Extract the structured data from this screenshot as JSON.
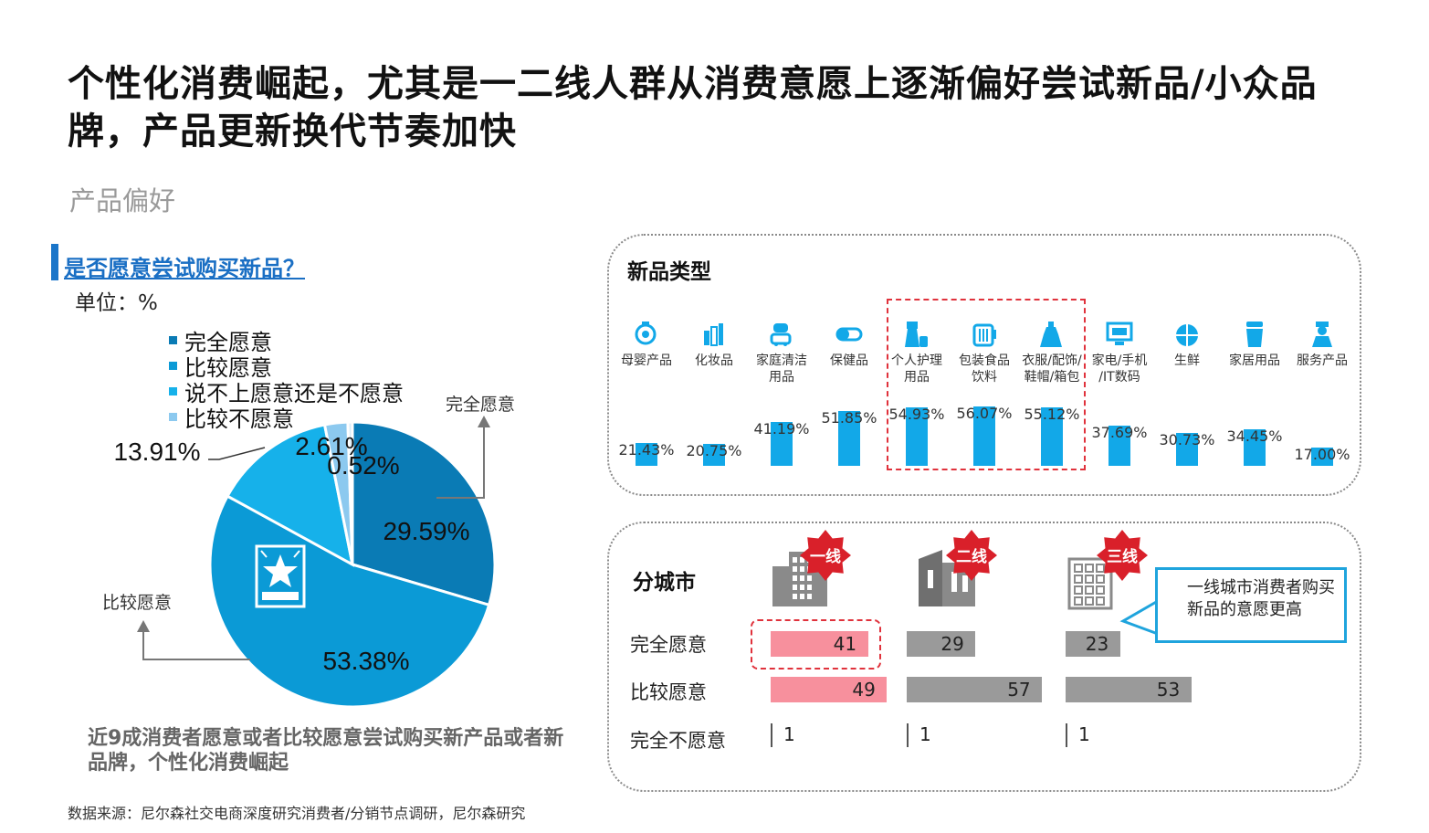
{
  "title": "个性化消费崛起，尤其是一二线人群从消费意愿上逐渐偏好尝试新品/小众品牌，产品更新换代节奏加快",
  "subtitle": "产品偏好",
  "pie_section": {
    "question": "是否愿意尝试购买新品？",
    "unit": "单位：%",
    "annotation_top": "完全愿意",
    "annotation_left": "比较愿意",
    "conclusion": "近9成消费者愿意或者比较愿意尝试购买新产品或者新品牌，个性化消费崛起"
  },
  "types_section": {
    "title": "新品类型"
  },
  "city_section": {
    "title": "分城市",
    "tier_badges": [
      "一线",
      "二线",
      "三线"
    ],
    "callout": "一线城市消费者购买新品的意愿更高"
  },
  "source": "数据来源：尼尔森社交电商深度研究消费者/分销节点调研，尼尔森研究",
  "colors": {
    "dark_blue": "#0a7bb5",
    "mid_blue": "#0b9ad6",
    "light_blue": "#16b1ea",
    "pale_blue": "#8cc9ef",
    "bar_blue": "#12a8e8",
    "pink": "#f7909d",
    "gray": "#9a9a9a",
    "red": "#d9202a"
  },
  "chart_data": [
    {
      "type": "pie",
      "title": "是否愿意尝试购买新品？",
      "categories": [
        "完全愿意",
        "比较愿意",
        "说不上愿意还是不愿意",
        "比较不愿意",
        ""
      ],
      "values": [
        29.59,
        53.38,
        13.91,
        2.61,
        0.52
      ],
      "labels": [
        "29.59%",
        "53.38%",
        "13.91%",
        "2.61%",
        "0.52%"
      ],
      "legend": [
        "完全愿意",
        "比较愿意",
        "说不上愿意还是不愿意",
        "比较不愿意"
      ],
      "legend_position": "top-left"
    },
    {
      "type": "bar",
      "title": "新品类型",
      "categories": [
        {
          "line1": "母婴产品",
          "line2": "",
          "icon": "baby-bottle-icon"
        },
        {
          "line1": "化妆品",
          "line2": "",
          "icon": "cosmetics-icon"
        },
        {
          "line1": "家庭清洁",
          "line2": "用品",
          "icon": "vacuum-icon"
        },
        {
          "line1": "保健品",
          "line2": "",
          "icon": "pill-icon"
        },
        {
          "line1": "个人护理",
          "line2": "用品",
          "icon": "personal-care-icon"
        },
        {
          "line1": "包装食品",
          "line2": "饮料",
          "icon": "beverage-icon"
        },
        {
          "line1": "衣服/配饰/",
          "line2": "鞋帽/箱包",
          "icon": "dress-icon"
        },
        {
          "line1": "家电/手机",
          "line2": "/IT数码",
          "icon": "tv-icon"
        },
        {
          "line1": "生鲜",
          "line2": "",
          "icon": "fruit-icon"
        },
        {
          "line1": "家居用品",
          "line2": "",
          "icon": "home-goods-icon"
        },
        {
          "line1": "服务产品",
          "line2": "",
          "icon": "service-person-icon"
        }
      ],
      "values": [
        21.43,
        20.75,
        41.19,
        51.85,
        54.93,
        56.07,
        55.12,
        37.69,
        30.73,
        34.45,
        17.0
      ],
      "labels": [
        "21.43%",
        "20.75%",
        "41.19%",
        "51.85%",
        "54.93%",
        "56.07%",
        "55.12%",
        "37.69%",
        "30.73%",
        "34.45%",
        "17.00%"
      ],
      "ylim": [
        0,
        60
      ],
      "highlighted": [
        "个人护理",
        "包装食品",
        "衣服/配饰/"
      ]
    },
    {
      "type": "bar",
      "title": "分城市",
      "categories": [
        "完全愿意",
        "比较愿意",
        "完全不愿意"
      ],
      "series": [
        {
          "name": "一线",
          "values": [
            41,
            49,
            1
          ],
          "color": "#f7909d"
        },
        {
          "name": "二线",
          "values": [
            29,
            57,
            1
          ],
          "color": "#9a9a9a"
        },
        {
          "name": "三线",
          "values": [
            23,
            53,
            1
          ],
          "color": "#9a9a9a"
        }
      ],
      "xlim": [
        0,
        60
      ]
    }
  ]
}
